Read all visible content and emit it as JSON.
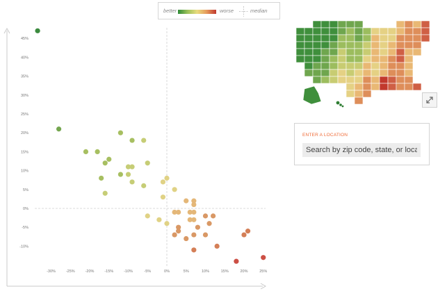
{
  "legend": {
    "better": "better",
    "worse": "worse",
    "median": "median",
    "gradient": [
      "#2e8b37",
      "#9cc15a",
      "#e9dc7e",
      "#e59a5b",
      "#c0382f"
    ]
  },
  "location": {
    "label": "ENTER A LOCATION",
    "placeholder": "Search by zip code, state, or loca"
  },
  "chart_data": {
    "type": "scatter",
    "xlim": [
      -32,
      26
    ],
    "ylim": [
      -16,
      47
    ],
    "x_ticks": [
      "-30%",
      "-25%",
      "-20%",
      "-15%",
      "-10%",
      "-5%",
      "0%",
      "5%",
      "10%",
      "15%",
      "20%",
      "25%"
    ],
    "y_ticks": [
      "45%",
      "40%",
      "35%",
      "30%",
      "25%",
      "20%",
      "15%",
      "10%",
      "5%",
      "0%",
      "-5%",
      "-10%"
    ],
    "median_lines": true,
    "colors": {
      "dark_green": "#3b8a3e",
      "green": "#74a64f",
      "light_green": "#a7bf61",
      "yellow_green": "#c6cd76",
      "yellow": "#e0d285",
      "tan": "#e4b778",
      "orange": "#d99865",
      "dark_orange": "#d47f57",
      "red": "#cc4f45"
    },
    "points": [
      {
        "x": -33.5,
        "y": 47,
        "c": "dark_green"
      },
      {
        "x": -28,
        "y": 21,
        "c": "green"
      },
      {
        "x": -21,
        "y": 15,
        "c": "light_green"
      },
      {
        "x": -18,
        "y": 15,
        "c": "light_green"
      },
      {
        "x": -12,
        "y": 20,
        "c": "light_green"
      },
      {
        "x": -9,
        "y": 18,
        "c": "light_green"
      },
      {
        "x": -6,
        "y": 18,
        "c": "yellow_green"
      },
      {
        "x": -16,
        "y": 12,
        "c": "light_green"
      },
      {
        "x": -15,
        "y": 13,
        "c": "light_green"
      },
      {
        "x": -17,
        "y": 8,
        "c": "light_green"
      },
      {
        "x": -16,
        "y": 4,
        "c": "yellow_green"
      },
      {
        "x": -10,
        "y": 11,
        "c": "yellow_green"
      },
      {
        "x": -9,
        "y": 11,
        "c": "yellow_green"
      },
      {
        "x": -12,
        "y": 9,
        "c": "light_green"
      },
      {
        "x": -10,
        "y": 9,
        "c": "yellow_green"
      },
      {
        "x": -9,
        "y": 7,
        "c": "yellow_green"
      },
      {
        "x": -5,
        "y": 12,
        "c": "yellow_green"
      },
      {
        "x": -6,
        "y": 6,
        "c": "yellow_green"
      },
      {
        "x": -5,
        "y": -2,
        "c": "yellow"
      },
      {
        "x": -2,
        "y": -3,
        "c": "yellow"
      },
      {
        "x": -1,
        "y": 7,
        "c": "yellow"
      },
      {
        "x": 0,
        "y": 8,
        "c": "yellow"
      },
      {
        "x": -1,
        "y": 3,
        "c": "yellow"
      },
      {
        "x": 0,
        "y": -4,
        "c": "yellow"
      },
      {
        "x": 2,
        "y": 5,
        "c": "yellow"
      },
      {
        "x": 5,
        "y": 2,
        "c": "tan"
      },
      {
        "x": 7,
        "y": 2,
        "c": "tan"
      },
      {
        "x": 7,
        "y": 1,
        "c": "tan"
      },
      {
        "x": 2,
        "y": -1,
        "c": "tan"
      },
      {
        "x": 3,
        "y": -1,
        "c": "tan"
      },
      {
        "x": 6,
        "y": -1,
        "c": "tan"
      },
      {
        "x": 7,
        "y": -1,
        "c": "tan"
      },
      {
        "x": 6,
        "y": -3,
        "c": "tan"
      },
      {
        "x": 7,
        "y": -3,
        "c": "tan"
      },
      {
        "x": 10,
        "y": -2,
        "c": "orange"
      },
      {
        "x": 12,
        "y": -2,
        "c": "orange"
      },
      {
        "x": 3,
        "y": -5,
        "c": "orange"
      },
      {
        "x": 8,
        "y": -5,
        "c": "orange"
      },
      {
        "x": 11,
        "y": -4,
        "c": "orange"
      },
      {
        "x": 2,
        "y": -7,
        "c": "orange"
      },
      {
        "x": 3,
        "y": -6,
        "c": "orange"
      },
      {
        "x": 5,
        "y": -8,
        "c": "orange"
      },
      {
        "x": 7,
        "y": -7,
        "c": "orange"
      },
      {
        "x": 10,
        "y": -7,
        "c": "orange"
      },
      {
        "x": 7,
        "y": -11,
        "c": "dark_orange"
      },
      {
        "x": 13,
        "y": -10,
        "c": "dark_orange"
      },
      {
        "x": 20,
        "y": -7,
        "c": "dark_orange"
      },
      {
        "x": 21,
        "y": -6,
        "c": "dark_orange"
      },
      {
        "x": 18,
        "y": -14,
        "c": "red"
      },
      {
        "x": 25,
        "y": -13,
        "c": "red"
      }
    ]
  },
  "map": {
    "colors": [
      "#3f8f3c",
      "#6fa64e",
      "#9cbd5e",
      "#c8cc72",
      "#e5d184",
      "#e9b874",
      "#de8e5a",
      "#cf5f45",
      "#c2392d"
    ]
  }
}
